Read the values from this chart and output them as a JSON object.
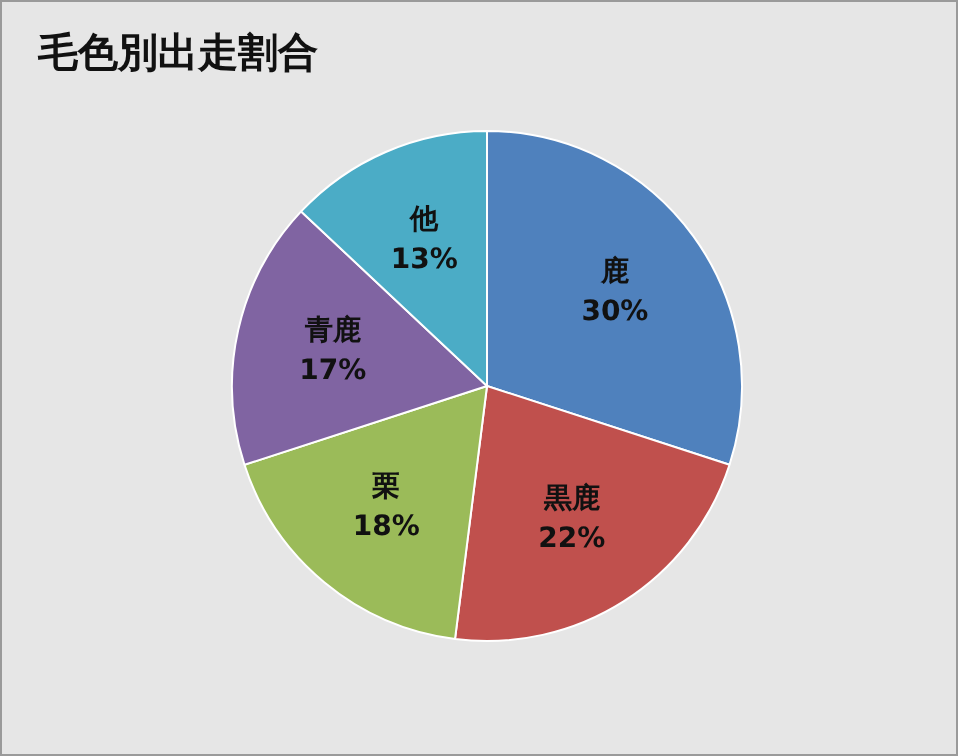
{
  "chart_data": {
    "type": "pie",
    "title": "毛色別出走割合",
    "categories": [
      "鹿",
      "黒鹿",
      "栗",
      "青鹿",
      "他"
    ],
    "values": [
      30,
      22,
      18,
      17,
      13
    ],
    "value_labels": [
      "30%",
      "22%",
      "18%",
      "17%",
      "13%"
    ],
    "colors": [
      "#4f81bd",
      "#c0504d",
      "#9bbb59",
      "#8064a2",
      "#4bacc6"
    ],
    "legend": false
  }
}
